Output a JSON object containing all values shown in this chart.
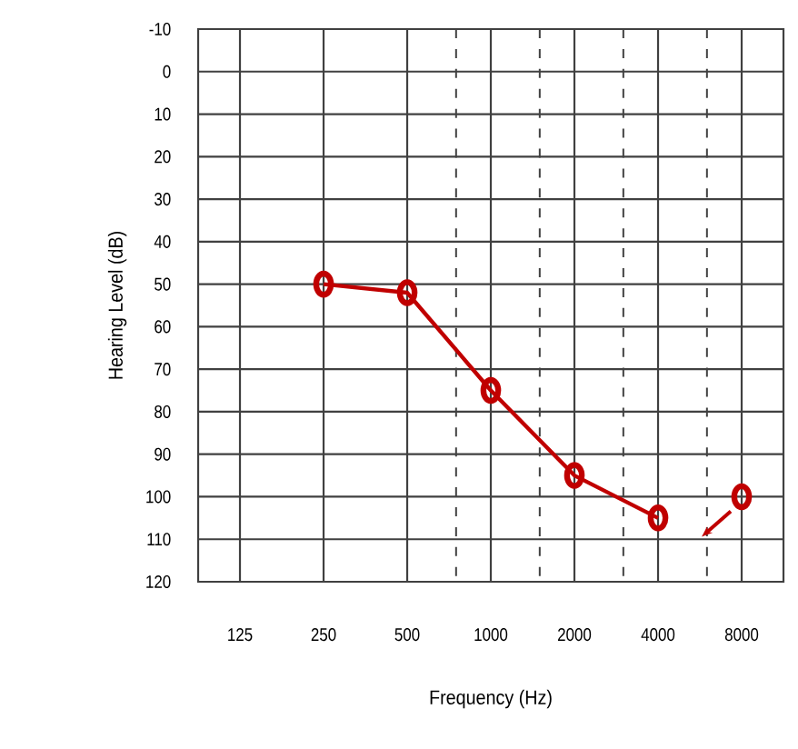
{
  "chart_data": {
    "type": "line",
    "xlabel": "Frequency (Hz)",
    "ylabel": "Hearing Level (dB)",
    "log": "x",
    "xlim": [
      88.39,
      11313.71
    ],
    "xticks": [
      125,
      250,
      500,
      1000,
      2000,
      4000,
      8000
    ],
    "ylim": [
      120,
      -10
    ],
    "yticks": [
      -10,
      0,
      10,
      20,
      30,
      40,
      50,
      60,
      70,
      80,
      90,
      100,
      110,
      120
    ],
    "grid": true,
    "marker": "circle",
    "line_style": "solid",
    "ref_lines": [
      {
        "axis": "x",
        "value": 750,
        "line_style": "dashed"
      },
      {
        "axis": "x",
        "value": 1500,
        "line_style": "dashed"
      },
      {
        "axis": "x",
        "value": 3000,
        "line_style": "dashed"
      },
      {
        "axis": "x",
        "value": 6000,
        "line_style": "dashed"
      }
    ],
    "series": [
      {
        "color": "#c00000",
        "x": [
          250,
          500,
          1000,
          2000,
          4000
        ],
        "values": [
          50,
          52,
          75,
          95,
          105
        ]
      },
      {
        "type": "scatter",
        "color": "#c00000",
        "x": [
          8000
        ],
        "values": [
          100
        ]
      }
    ]
  }
}
